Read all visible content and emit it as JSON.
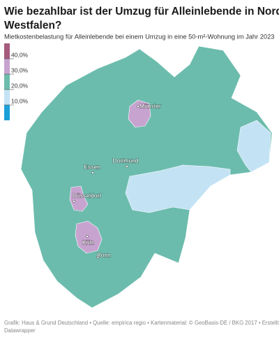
{
  "title": "Wie bezahlbar ist der Umzug für Alleinlebende in Nordrhein-Westfalen?",
  "subtitle": "Mietkostenbelastung für Alleinlebende bei einem Umzug in eine 50-m²-Wohnung im Jahr 2023",
  "legend": {
    "colors": [
      "#1aa0d8",
      "#c3e3f4",
      "#6cbcad",
      "#c7a3cf",
      "#a65b7d"
    ],
    "ticks": [
      {
        "value": 10,
        "label": "10,0%"
      },
      {
        "value": 20,
        "label": "20,0%"
      },
      {
        "value": 30,
        "label": "30,0%"
      },
      {
        "value": 40,
        "label": "40,0%"
      }
    ]
  },
  "cities": [
    "Münster",
    "Essen",
    "Dortmund",
    "Düsseldorf",
    "Köln",
    "Bonn"
  ],
  "footer": "Grafik: Haus & Grund Deutschland • Quelle: empirica regio • Kartenmaterial: © GeoBasis-DE / BKG 2017 • Erstellt mit Datawrapper"
}
